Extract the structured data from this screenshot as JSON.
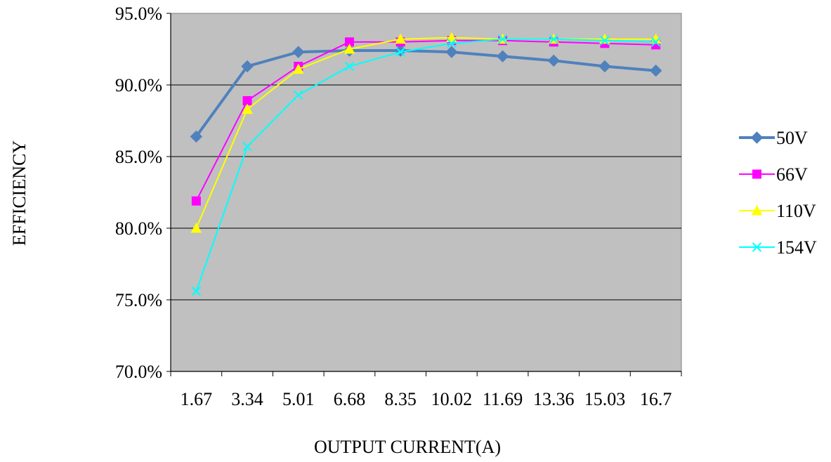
{
  "chart_data": {
    "type": "line",
    "title": "",
    "xlabel": "OUTPUT CURRENT(A)",
    "ylabel": "EFFICIENCY",
    "categories": [
      "1.67",
      "3.34",
      "5.01",
      "6.68",
      "8.35",
      "10.02",
      "11.69",
      "13.36",
      "15.03",
      "16.7"
    ],
    "ylim": [
      0.7,
      0.95
    ],
    "yticks": [
      "70.0%",
      "75.0%",
      "80.0%",
      "85.0%",
      "90.0%",
      "95.0%"
    ],
    "grid": "horizontal",
    "plot_background": "#c0c0c0",
    "legend_position": "right",
    "series": [
      {
        "name": "50V",
        "color": "#4f81bd",
        "marker": "diamond",
        "values": [
          0.864,
          0.913,
          0.923,
          0.924,
          0.924,
          0.923,
          0.92,
          0.917,
          0.913,
          0.91
        ]
      },
      {
        "name": "66V",
        "color": "#ff00ff",
        "marker": "square",
        "values": [
          0.819,
          0.889,
          0.913,
          0.93,
          0.93,
          0.931,
          0.931,
          0.93,
          0.929,
          0.928
        ]
      },
      {
        "name": "110V",
        "color": "#ffff00",
        "marker": "triangle",
        "values": [
          0.8,
          0.883,
          0.911,
          0.925,
          0.932,
          0.933,
          0.932,
          0.932,
          0.932,
          0.932
        ]
      },
      {
        "name": "154V",
        "color": "#00ffff",
        "marker": "x",
        "values": [
          0.756,
          0.857,
          0.893,
          0.913,
          0.923,
          0.929,
          0.932,
          0.932,
          0.931,
          0.93
        ]
      }
    ]
  }
}
